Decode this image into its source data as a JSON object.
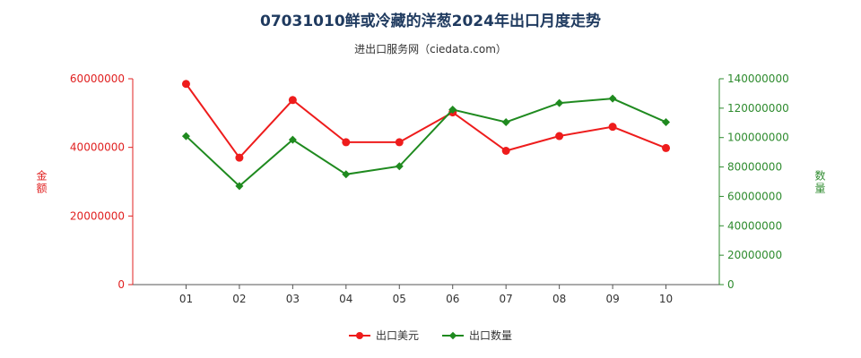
{
  "title": "07031010鲜或冷藏的洋葱2024年出口月度走势",
  "subtitle": "进出口服务网（ciedata.com）",
  "chart_data": {
    "type": "line",
    "categories": [
      "01",
      "02",
      "03",
      "04",
      "05",
      "06",
      "07",
      "08",
      "09",
      "10"
    ],
    "y_left": {
      "label": "金额",
      "min": 0,
      "max": 60000000,
      "ticks": [
        0,
        20000000,
        40000000,
        60000000
      ],
      "color": "#e02020"
    },
    "y_right": {
      "label": "数量",
      "min": 0,
      "max": 140000000,
      "ticks": [
        0,
        20000000,
        40000000,
        60000000,
        80000000,
        100000000,
        120000000,
        140000000
      ],
      "color": "#2e8b2e"
    },
    "series": [
      {
        "name": "出口美元",
        "axis": "left",
        "color": "#ee1c1c",
        "marker": "circle",
        "values": [
          58500000,
          37000000,
          53800000,
          41500000,
          41500000,
          50200000,
          39000000,
          43300000,
          46000000,
          39800000
        ]
      },
      {
        "name": "出口数量",
        "axis": "right",
        "color": "#1f8a1f",
        "marker": "diamond",
        "values": [
          101000000,
          67000000,
          98500000,
          75000000,
          80500000,
          119000000,
          110500000,
          123500000,
          126500000,
          110500000
        ]
      }
    ]
  }
}
